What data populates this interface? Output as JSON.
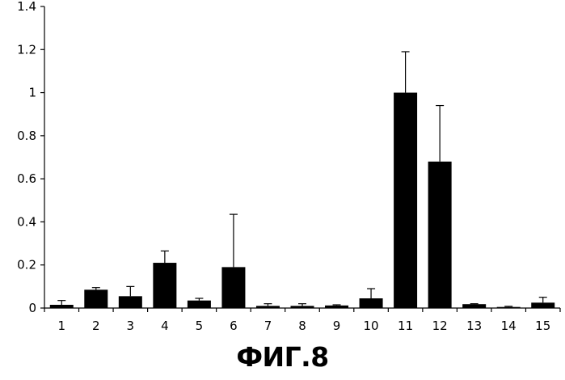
{
  "chart_data": {
    "type": "bar",
    "title": "",
    "xlabel": "",
    "ylabel": "",
    "ylim": [
      0,
      1.4
    ],
    "yticks": [
      "0",
      "0.2",
      "0.4",
      "0.6",
      "0.8",
      "1",
      "1.2",
      "1.4"
    ],
    "categories": [
      "1",
      "2",
      "3",
      "4",
      "5",
      "6",
      "7",
      "8",
      "9",
      "10",
      "11",
      "12",
      "13",
      "14",
      "15"
    ],
    "values": [
      0.015,
      0.085,
      0.055,
      0.21,
      0.035,
      0.19,
      0.01,
      0.01,
      0.012,
      0.045,
      1.0,
      0.68,
      0.018,
      0.005,
      0.025
    ],
    "error_upper": [
      0.035,
      0.095,
      0.1,
      0.265,
      0.045,
      0.435,
      0.02,
      0.02,
      0.015,
      0.09,
      1.19,
      0.94,
      0.02,
      0.008,
      0.05
    ],
    "bar_color": "#000000",
    "grid": false,
    "legend": "none"
  },
  "caption": "ФИГ.8"
}
